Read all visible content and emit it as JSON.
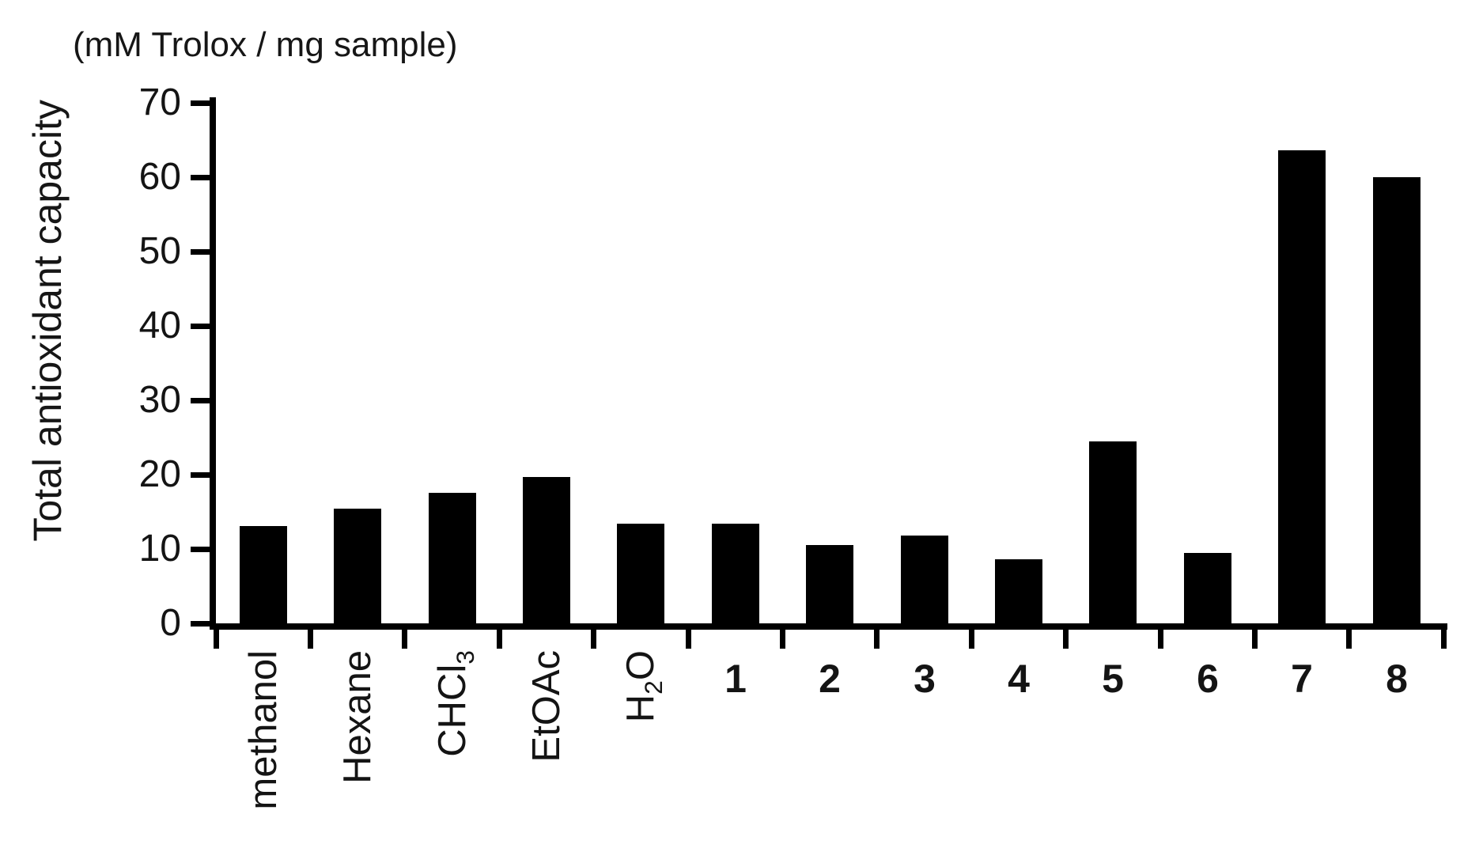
{
  "chart_data": {
    "type": "bar",
    "title": "",
    "units_label": "(mM Trolox / mg sample)",
    "ylabel": "Total antioxidant capacity",
    "xlabel": "",
    "ylim": [
      0,
      70
    ],
    "yticks": [
      0,
      10,
      20,
      30,
      40,
      50,
      60,
      70
    ],
    "grid": false,
    "legend": "none",
    "bar_color": "#000000",
    "axis_color": "#000000",
    "text_color": "#141414",
    "categories": [
      {
        "parts": [
          {
            "text": "methanol"
          }
        ],
        "rotated": true,
        "bold": false
      },
      {
        "parts": [
          {
            "text": "Hexane"
          }
        ],
        "rotated": true,
        "bold": false
      },
      {
        "parts": [
          {
            "text": "CHCl"
          },
          {
            "text": "3",
            "sub": true
          }
        ],
        "rotated": true,
        "bold": false
      },
      {
        "parts": [
          {
            "text": "EtOAc"
          }
        ],
        "rotated": true,
        "bold": false
      },
      {
        "parts": [
          {
            "text": "H"
          },
          {
            "text": "2",
            "sub": true
          },
          {
            "text": "O"
          }
        ],
        "rotated": true,
        "bold": false
      },
      {
        "parts": [
          {
            "text": "1"
          }
        ],
        "rotated": false,
        "bold": true
      },
      {
        "parts": [
          {
            "text": "2"
          }
        ],
        "rotated": false,
        "bold": true
      },
      {
        "parts": [
          {
            "text": "3"
          }
        ],
        "rotated": false,
        "bold": true
      },
      {
        "parts": [
          {
            "text": "4"
          }
        ],
        "rotated": false,
        "bold": true
      },
      {
        "parts": [
          {
            "text": "5"
          }
        ],
        "rotated": false,
        "bold": true
      },
      {
        "parts": [
          {
            "text": "6"
          }
        ],
        "rotated": false,
        "bold": true
      },
      {
        "parts": [
          {
            "text": "7"
          }
        ],
        "rotated": false,
        "bold": true
      },
      {
        "parts": [
          {
            "text": "8"
          }
        ],
        "rotated": false,
        "bold": true
      }
    ],
    "values": [
      13.1,
      15.4,
      17.6,
      19.7,
      13.4,
      13.4,
      10.5,
      11.8,
      8.6,
      24.5,
      9.5,
      63.6,
      60.0
    ]
  }
}
